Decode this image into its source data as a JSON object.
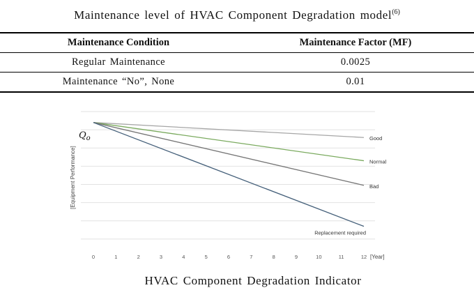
{
  "table": {
    "title": "Maintenance level of HVAC Component Degradation model",
    "ref": "(6)",
    "headers": [
      "Maintenance Condition",
      "Maintenance Factor (MF)"
    ],
    "rows": [
      {
        "condition": "Regular Maintenance",
        "factor": "0.0025"
      },
      {
        "condition": "Maintenance “No”, None",
        "factor": "0.01"
      }
    ]
  },
  "chart_caption": "HVAC Component Degradation Indicator",
  "chart_data": {
    "type": "line",
    "title": "",
    "xlabel": "[Year]",
    "ylabel": "[Equipment Performance]",
    "origin_label": "Q",
    "origin_subscript": "o",
    "x": [
      0,
      12
    ],
    "xlim": [
      0,
      12
    ],
    "xticks": [
      0,
      1,
      2,
      3,
      4,
      5,
      6,
      7,
      8,
      9,
      10,
      11,
      12
    ],
    "ylim": [
      0,
      1
    ],
    "grid": true,
    "series": [
      {
        "name": "Good",
        "color": "#a6a6a6",
        "values": [
          0.92,
          0.81
        ]
      },
      {
        "name": "Normal",
        "color": "#7aaa5e",
        "values": [
          0.92,
          0.64
        ]
      },
      {
        "name": "Bad",
        "color": "#767676",
        "values": [
          0.92,
          0.46
        ]
      },
      {
        "name": "Replacement required",
        "color": "#45607a",
        "values": [
          0.92,
          0.16
        ]
      }
    ]
  }
}
